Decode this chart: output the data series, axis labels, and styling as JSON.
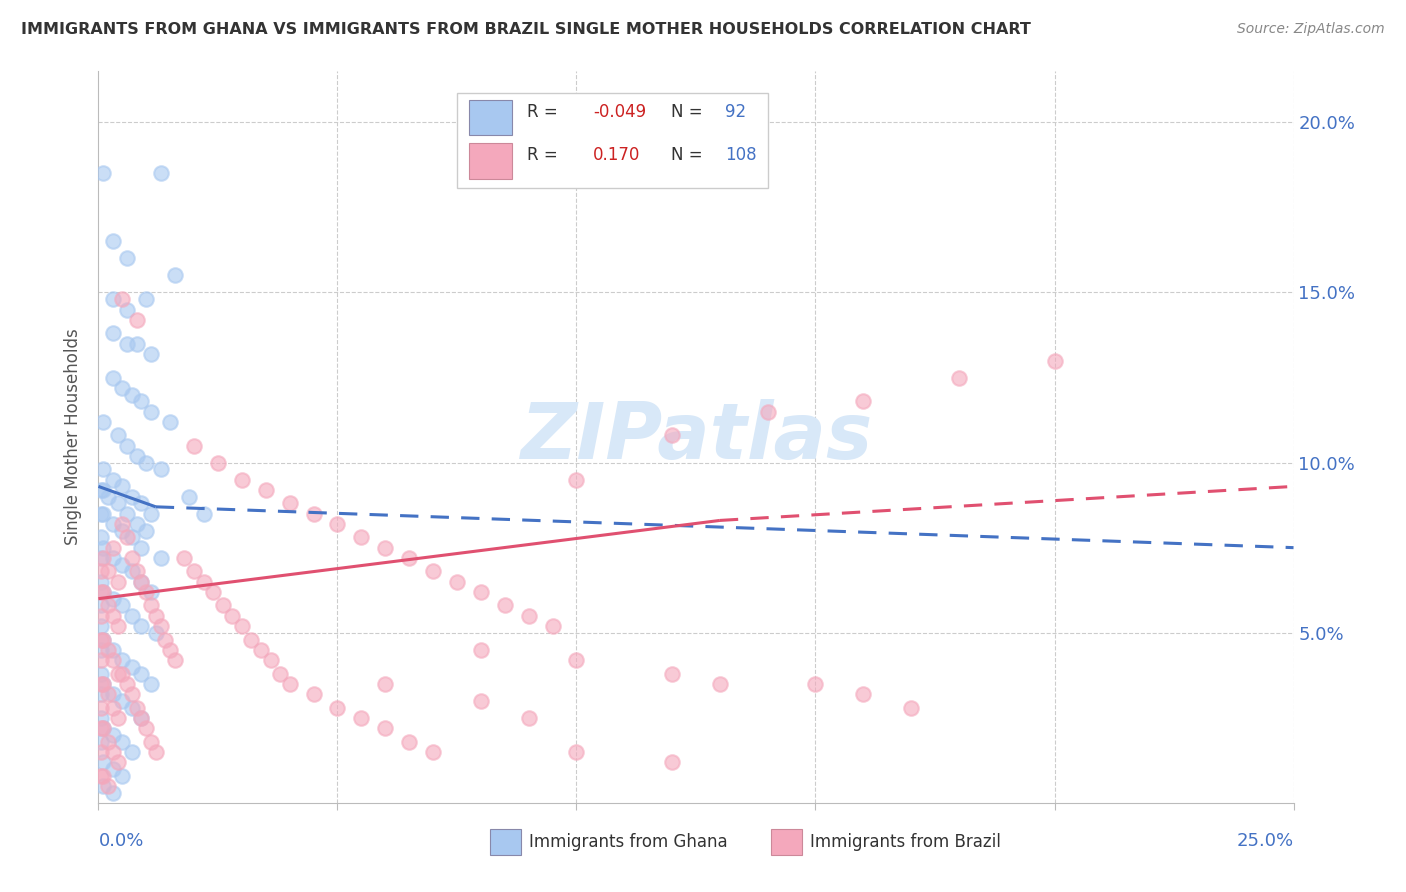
{
  "title": "IMMIGRANTS FROM GHANA VS IMMIGRANTS FROM BRAZIL SINGLE MOTHER HOUSEHOLDS CORRELATION CHART",
  "source": "Source: ZipAtlas.com",
  "ylabel": "Single Mother Households",
  "xlim": [
    0.0,
    0.25
  ],
  "ylim": [
    0.0,
    0.215
  ],
  "ghana_R": "-0.049",
  "ghana_N": "92",
  "brazil_R": "0.170",
  "brazil_N": "108",
  "ghana_color": "#a8c8f0",
  "brazil_color": "#f4a8bc",
  "ghana_line_color": "#4472c4",
  "brazil_line_color": "#e05070",
  "watermark_color": "#d8e8f8",
  "ghana_scatter": [
    [
      0.001,
      0.185
    ],
    [
      0.013,
      0.185
    ],
    [
      0.003,
      0.165
    ],
    [
      0.006,
      0.16
    ],
    [
      0.016,
      0.155
    ],
    [
      0.003,
      0.148
    ],
    [
      0.006,
      0.145
    ],
    [
      0.01,
      0.148
    ],
    [
      0.003,
      0.138
    ],
    [
      0.006,
      0.135
    ],
    [
      0.008,
      0.135
    ],
    [
      0.011,
      0.132
    ],
    [
      0.003,
      0.125
    ],
    [
      0.005,
      0.122
    ],
    [
      0.007,
      0.12
    ],
    [
      0.009,
      0.118
    ],
    [
      0.011,
      0.115
    ],
    [
      0.015,
      0.112
    ],
    [
      0.001,
      0.112
    ],
    [
      0.004,
      0.108
    ],
    [
      0.006,
      0.105
    ],
    [
      0.008,
      0.102
    ],
    [
      0.01,
      0.1
    ],
    [
      0.013,
      0.098
    ],
    [
      0.001,
      0.098
    ],
    [
      0.003,
      0.095
    ],
    [
      0.005,
      0.093
    ],
    [
      0.007,
      0.09
    ],
    [
      0.009,
      0.088
    ],
    [
      0.011,
      0.085
    ],
    [
      0.001,
      0.085
    ],
    [
      0.003,
      0.082
    ],
    [
      0.005,
      0.08
    ],
    [
      0.007,
      0.078
    ],
    [
      0.009,
      0.075
    ],
    [
      0.013,
      0.072
    ],
    [
      0.001,
      0.092
    ],
    [
      0.002,
      0.09
    ],
    [
      0.004,
      0.088
    ],
    [
      0.006,
      0.085
    ],
    [
      0.008,
      0.082
    ],
    [
      0.01,
      0.08
    ],
    [
      0.001,
      0.075
    ],
    [
      0.003,
      0.072
    ],
    [
      0.005,
      0.07
    ],
    [
      0.007,
      0.068
    ],
    [
      0.009,
      0.065
    ],
    [
      0.011,
      0.062
    ],
    [
      0.001,
      0.062
    ],
    [
      0.003,
      0.06
    ],
    [
      0.005,
      0.058
    ],
    [
      0.007,
      0.055
    ],
    [
      0.009,
      0.052
    ],
    [
      0.012,
      0.05
    ],
    [
      0.001,
      0.048
    ],
    [
      0.003,
      0.045
    ],
    [
      0.005,
      0.042
    ],
    [
      0.007,
      0.04
    ],
    [
      0.009,
      0.038
    ],
    [
      0.011,
      0.035
    ],
    [
      0.001,
      0.035
    ],
    [
      0.003,
      0.032
    ],
    [
      0.005,
      0.03
    ],
    [
      0.007,
      0.028
    ],
    [
      0.009,
      0.025
    ],
    [
      0.001,
      0.022
    ],
    [
      0.003,
      0.02
    ],
    [
      0.005,
      0.018
    ],
    [
      0.007,
      0.015
    ],
    [
      0.001,
      0.012
    ],
    [
      0.003,
      0.01
    ],
    [
      0.005,
      0.008
    ],
    [
      0.001,
      0.005
    ],
    [
      0.003,
      0.003
    ],
    [
      0.0005,
      0.092
    ],
    [
      0.0005,
      0.085
    ],
    [
      0.0005,
      0.078
    ],
    [
      0.0005,
      0.072
    ],
    [
      0.0005,
      0.065
    ],
    [
      0.0005,
      0.058
    ],
    [
      0.0005,
      0.052
    ],
    [
      0.0005,
      0.045
    ],
    [
      0.0005,
      0.038
    ],
    [
      0.0005,
      0.032
    ],
    [
      0.0005,
      0.025
    ],
    [
      0.0005,
      0.018
    ],
    [
      0.019,
      0.09
    ],
    [
      0.022,
      0.085
    ]
  ],
  "brazil_scatter": [
    [
      0.001,
      0.072
    ],
    [
      0.002,
      0.068
    ],
    [
      0.003,
      0.075
    ],
    [
      0.004,
      0.065
    ],
    [
      0.001,
      0.062
    ],
    [
      0.002,
      0.058
    ],
    [
      0.003,
      0.055
    ],
    [
      0.004,
      0.052
    ],
    [
      0.001,
      0.048
    ],
    [
      0.002,
      0.045
    ],
    [
      0.003,
      0.042
    ],
    [
      0.004,
      0.038
    ],
    [
      0.001,
      0.035
    ],
    [
      0.002,
      0.032
    ],
    [
      0.003,
      0.028
    ],
    [
      0.004,
      0.025
    ],
    [
      0.001,
      0.022
    ],
    [
      0.002,
      0.018
    ],
    [
      0.003,
      0.015
    ],
    [
      0.004,
      0.012
    ],
    [
      0.001,
      0.008
    ],
    [
      0.002,
      0.005
    ],
    [
      0.0005,
      0.068
    ],
    [
      0.0005,
      0.062
    ],
    [
      0.0005,
      0.055
    ],
    [
      0.0005,
      0.048
    ],
    [
      0.0005,
      0.042
    ],
    [
      0.0005,
      0.035
    ],
    [
      0.0005,
      0.028
    ],
    [
      0.0005,
      0.022
    ],
    [
      0.0005,
      0.015
    ],
    [
      0.0005,
      0.008
    ],
    [
      0.005,
      0.082
    ],
    [
      0.006,
      0.078
    ],
    [
      0.007,
      0.072
    ],
    [
      0.008,
      0.068
    ],
    [
      0.009,
      0.065
    ],
    [
      0.01,
      0.062
    ],
    [
      0.011,
      0.058
    ],
    [
      0.012,
      0.055
    ],
    [
      0.013,
      0.052
    ],
    [
      0.014,
      0.048
    ],
    [
      0.015,
      0.045
    ],
    [
      0.016,
      0.042
    ],
    [
      0.005,
      0.038
    ],
    [
      0.006,
      0.035
    ],
    [
      0.007,
      0.032
    ],
    [
      0.008,
      0.028
    ],
    [
      0.009,
      0.025
    ],
    [
      0.01,
      0.022
    ],
    [
      0.011,
      0.018
    ],
    [
      0.012,
      0.015
    ],
    [
      0.005,
      0.148
    ],
    [
      0.008,
      0.142
    ],
    [
      0.018,
      0.072
    ],
    [
      0.02,
      0.068
    ],
    [
      0.022,
      0.065
    ],
    [
      0.024,
      0.062
    ],
    [
      0.026,
      0.058
    ],
    [
      0.028,
      0.055
    ],
    [
      0.03,
      0.052
    ],
    [
      0.032,
      0.048
    ],
    [
      0.034,
      0.045
    ],
    [
      0.036,
      0.042
    ],
    [
      0.038,
      0.038
    ],
    [
      0.04,
      0.035
    ],
    [
      0.045,
      0.032
    ],
    [
      0.05,
      0.028
    ],
    [
      0.055,
      0.025
    ],
    [
      0.06,
      0.022
    ],
    [
      0.065,
      0.018
    ],
    [
      0.07,
      0.015
    ],
    [
      0.02,
      0.105
    ],
    [
      0.025,
      0.1
    ],
    [
      0.03,
      0.095
    ],
    [
      0.035,
      0.092
    ],
    [
      0.04,
      0.088
    ],
    [
      0.045,
      0.085
    ],
    [
      0.05,
      0.082
    ],
    [
      0.055,
      0.078
    ],
    [
      0.06,
      0.075
    ],
    [
      0.065,
      0.072
    ],
    [
      0.07,
      0.068
    ],
    [
      0.075,
      0.065
    ],
    [
      0.08,
      0.062
    ],
    [
      0.085,
      0.058
    ],
    [
      0.09,
      0.055
    ],
    [
      0.095,
      0.052
    ],
    [
      0.1,
      0.095
    ],
    [
      0.12,
      0.108
    ],
    [
      0.14,
      0.115
    ],
    [
      0.16,
      0.118
    ],
    [
      0.18,
      0.125
    ],
    [
      0.2,
      0.13
    ],
    [
      0.15,
      0.035
    ],
    [
      0.16,
      0.032
    ],
    [
      0.17,
      0.028
    ],
    [
      0.1,
      0.042
    ],
    [
      0.12,
      0.038
    ],
    [
      0.13,
      0.035
    ],
    [
      0.08,
      0.03
    ],
    [
      0.09,
      0.025
    ],
    [
      0.1,
      0.015
    ],
    [
      0.12,
      0.012
    ],
    [
      0.08,
      0.045
    ],
    [
      0.06,
      0.035
    ]
  ],
  "ghana_line": {
    "x0": 0.0,
    "y0": 0.093,
    "x1": 0.012,
    "y1": 0.087,
    "xd1": 0.012,
    "yd1": 0.087,
    "xd2": 0.25,
    "yd2": 0.075
  },
  "brazil_line": {
    "x0": 0.0,
    "y0": 0.06,
    "x1": 0.13,
    "y1": 0.083,
    "xd1": 0.13,
    "yd1": 0.083,
    "xd2": 0.25,
    "yd2": 0.093
  }
}
